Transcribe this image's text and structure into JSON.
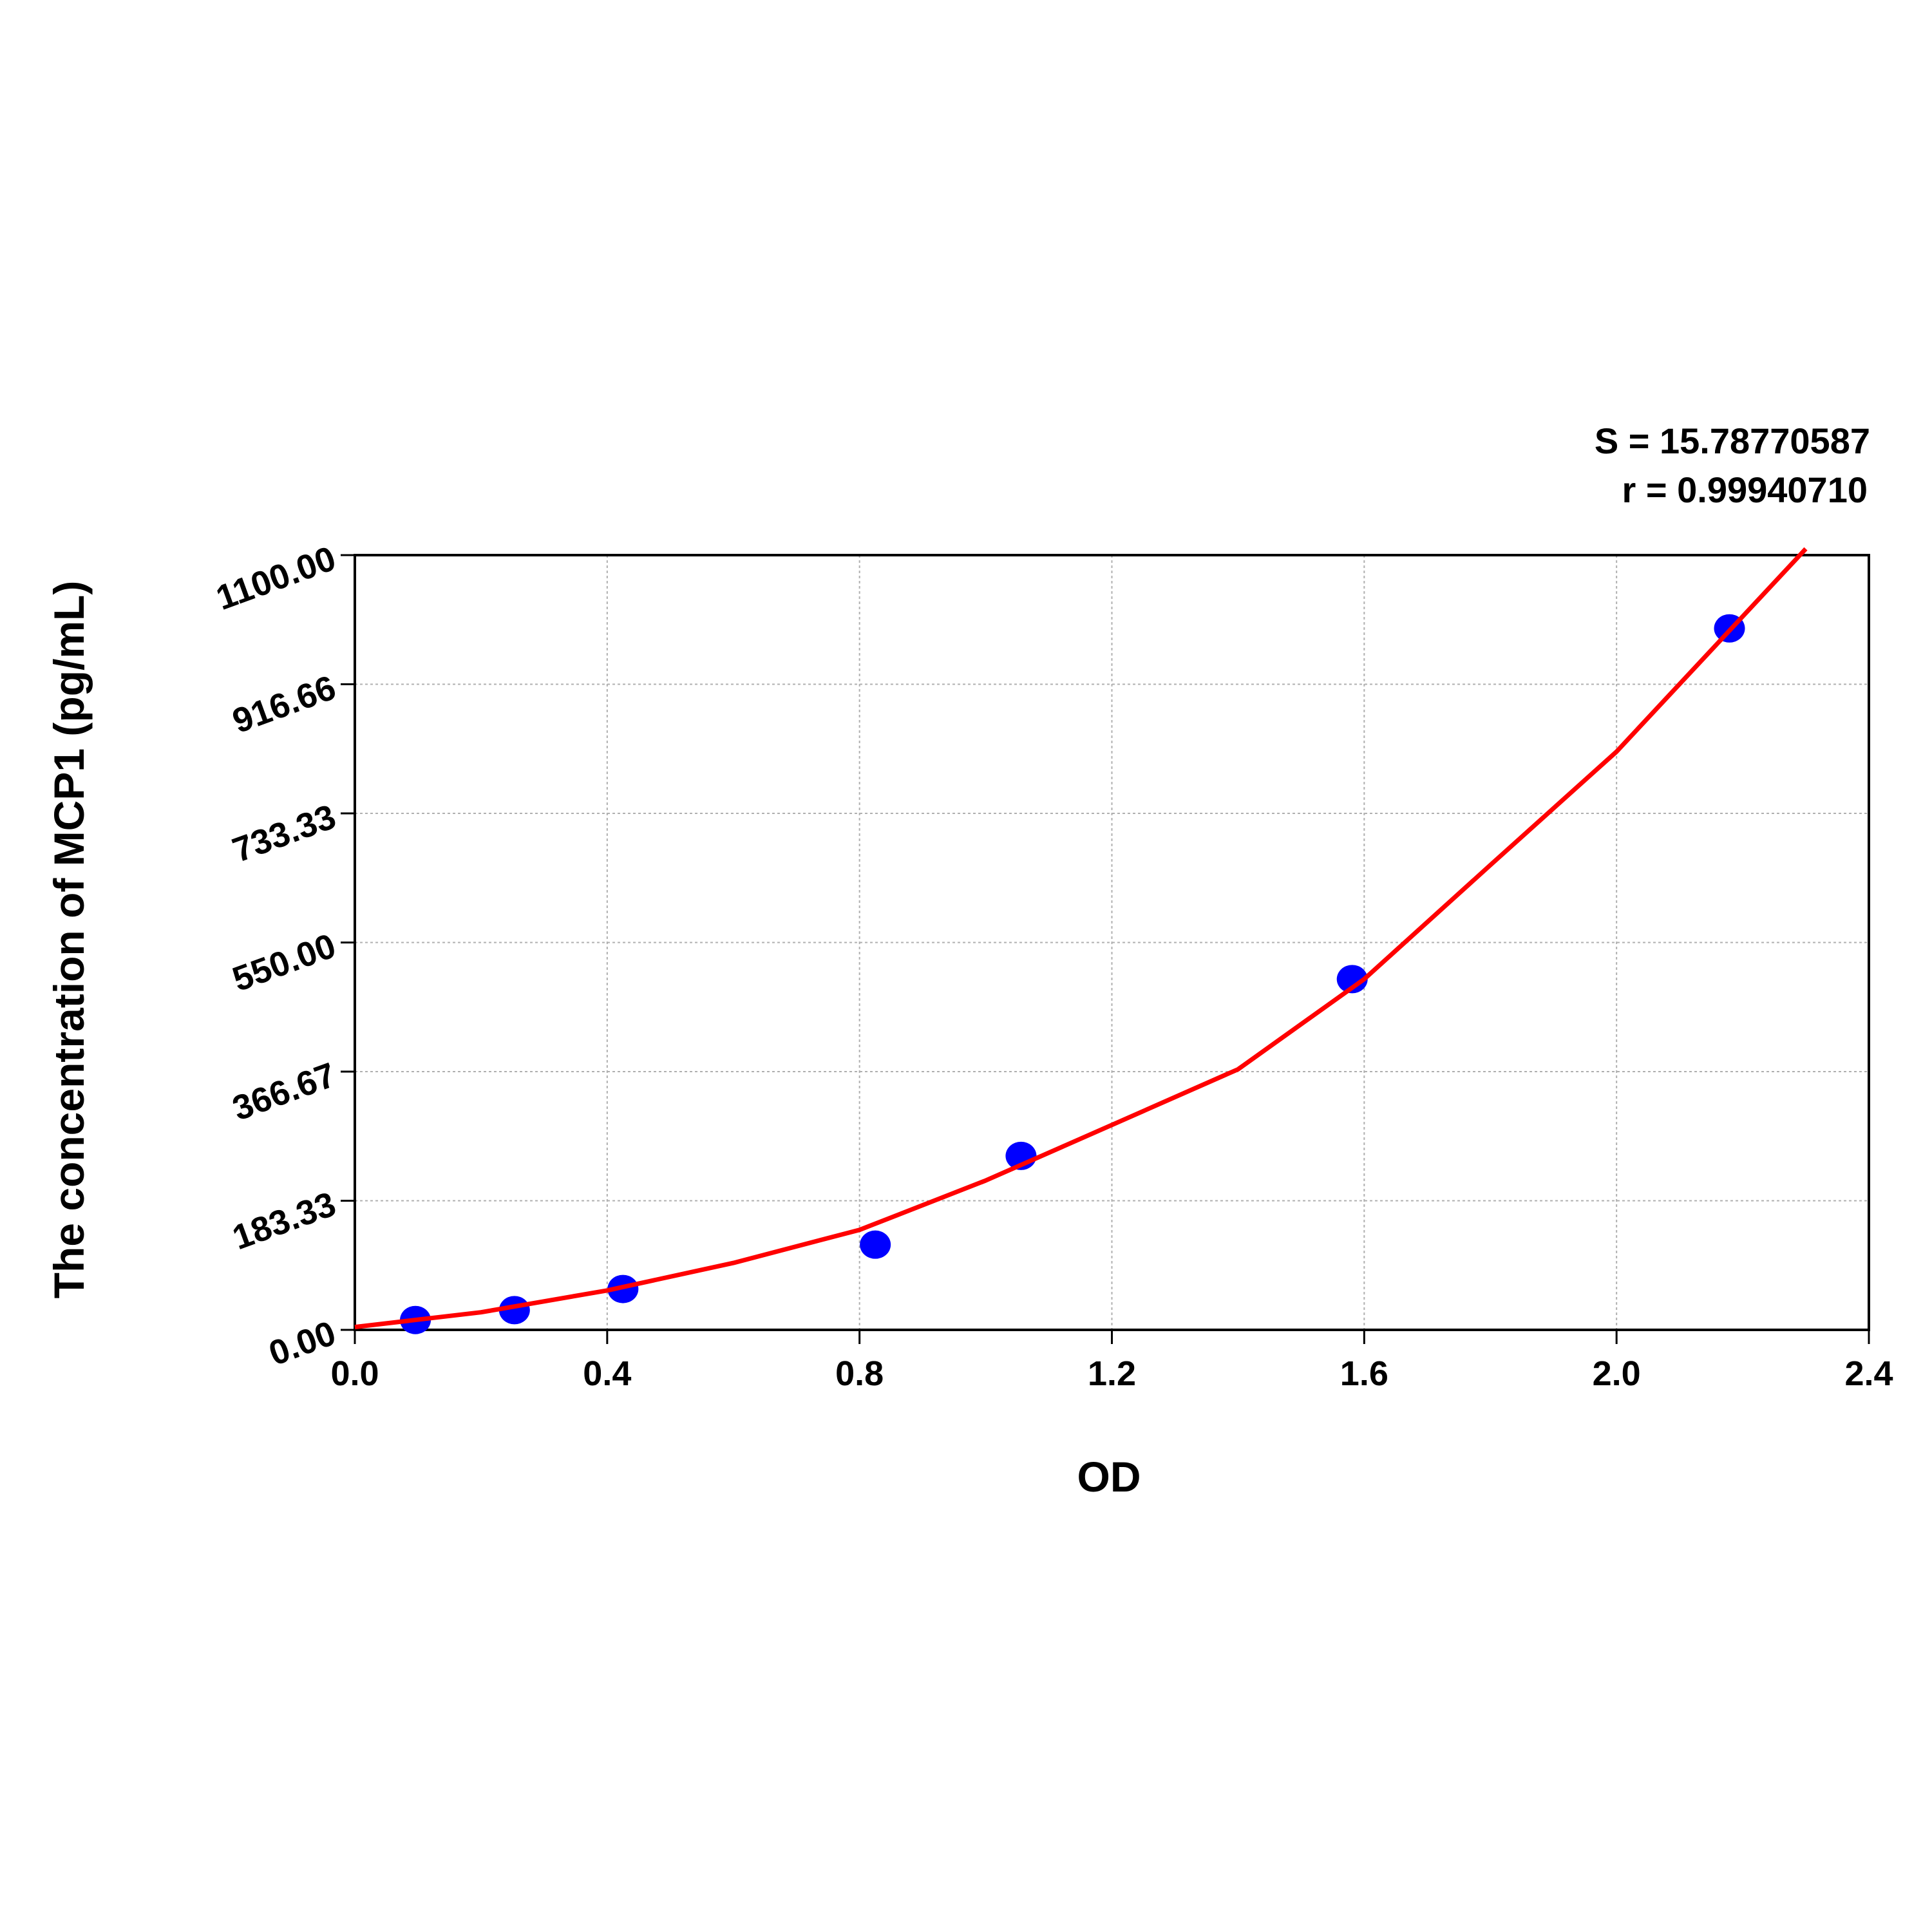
{
  "chart_data": {
    "type": "scatter",
    "xlabel": "OD",
    "ylabel": "The concentration of MCP1 (pg/mL)",
    "annotations": [
      "S = 15.78770587",
      "r = 0.99940710"
    ],
    "xlim": [
      0,
      2.4
    ],
    "ylim": [
      0,
      1100
    ],
    "xticks": [
      {
        "value": 0,
        "label": "0.0"
      },
      0.4,
      0.8,
      1.2,
      1.6,
      {
        "value": 2,
        "label": "2.0"
      },
      2.4
    ],
    "yticks": [
      {
        "value": 0,
        "label": "0.00"
      },
      183.33,
      366.67,
      {
        "value": 550,
        "label": "550.00"
      },
      733.33,
      916.66,
      {
        "value": 1100,
        "label": "1100.00"
      }
    ],
    "grid": true,
    "series": [
      {
        "style": "points",
        "color": "#0000ff",
        "x": [
          0.096,
          0.253,
          0.425,
          0.825,
          1.056,
          1.581,
          2.179
        ],
        "values": [
          14,
          28,
          58,
          121,
          247,
          498,
          996
        ]
      },
      {
        "style": "line",
        "color": "#ff0000",
        "x": [
          0,
          0.2,
          0.4,
          0.6,
          0.8,
          1.0,
          1.2,
          1.4,
          1.6,
          1.8,
          2.0,
          2.3
        ],
        "values": [
          4,
          25,
          56,
          95,
          142,
          212,
          291,
          370,
          498,
          660,
          821,
          1109
        ]
      }
    ]
  }
}
